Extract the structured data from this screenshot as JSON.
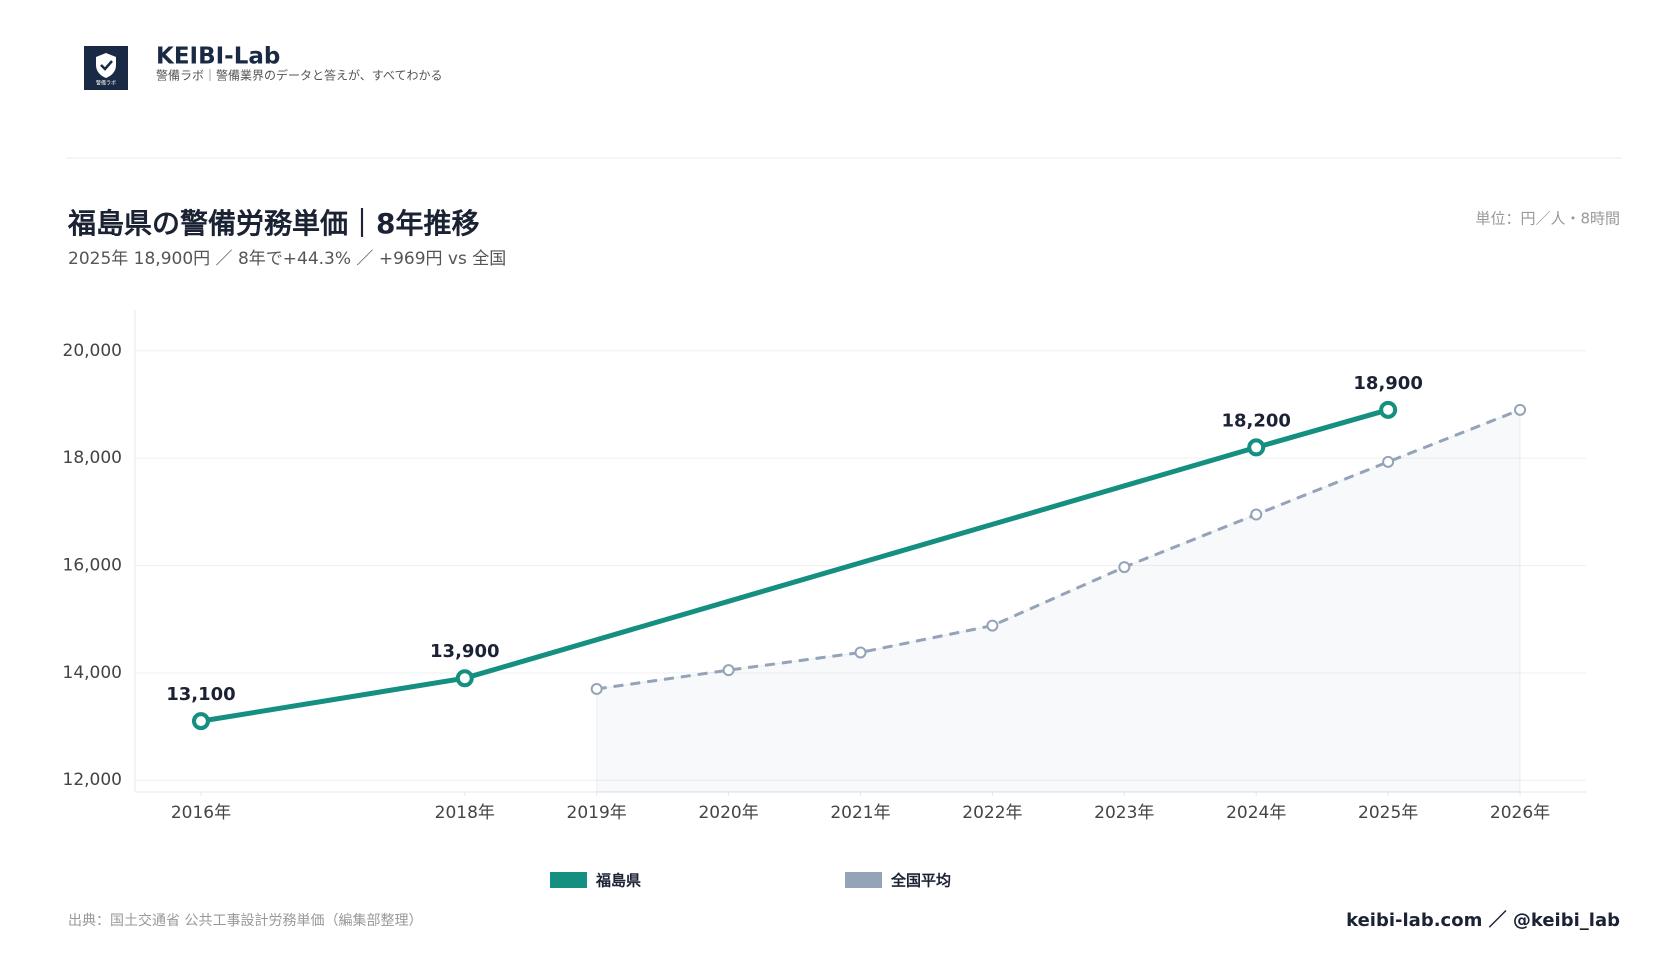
{
  "header": {
    "brand": "KEIBI-Lab",
    "tagline": "警備ラボ｜警備業界のデータと答えが、すべてわかる",
    "logo_text": "警備ラボ"
  },
  "chart_data": {
    "type": "line",
    "title": "福島県の警備労務単価｜8年推移",
    "subtitle": "2025年 18,900円 ／ 8年で+44.3% ／ +969円 vs 全国",
    "unit": "単位：円／人・8時間",
    "xlim": [
      2015.5,
      2026.5
    ],
    "xticks": [
      {
        "value": 2016,
        "label": "2016年"
      },
      {
        "value": 2018,
        "label": "2018年"
      },
      {
        "value": 2019,
        "label": "2019年"
      },
      {
        "value": 2020,
        "label": "2020年"
      },
      {
        "value": 2021,
        "label": "2021年"
      },
      {
        "value": 2022,
        "label": "2022年"
      },
      {
        "value": 2023,
        "label": "2023年"
      },
      {
        "value": 2024,
        "label": "2024年"
      },
      {
        "value": 2025,
        "label": "2025年"
      },
      {
        "value": 2026,
        "label": "2026年"
      }
    ],
    "ylim": [
      11780,
      20760
    ],
    "yticks": [
      {
        "value": 12000,
        "label": "12,000"
      },
      {
        "value": 14000,
        "label": "14,000"
      },
      {
        "value": 16000,
        "label": "16,000"
      },
      {
        "value": 18000,
        "label": "18,000"
      },
      {
        "value": 20000,
        "label": "20,000"
      }
    ],
    "grid": true,
    "series": [
      {
        "name": "福島県",
        "color": "#148f80",
        "x": [
          2016,
          2018,
          2024,
          2025
        ],
        "values": [
          13100,
          13900,
          18200,
          18900
        ],
        "value_labels": [
          "13,100",
          "13,900",
          "18,200",
          "18,900"
        ]
      },
      {
        "name": "全国平均",
        "color": "#94a3b8",
        "dashed": true,
        "area": true,
        "x": [
          2019,
          2020,
          2021,
          2022,
          2023,
          2024,
          2025,
          2026
        ],
        "values": [
          13700,
          14050,
          14380,
          14880,
          15970,
          16950,
          17931,
          18900
        ]
      }
    ]
  },
  "footer": {
    "source": "出典：国土交通省 公共工事設計労務単価（編集部整理）",
    "credit": "keibi-lab.com ／ @keibi_lab"
  }
}
